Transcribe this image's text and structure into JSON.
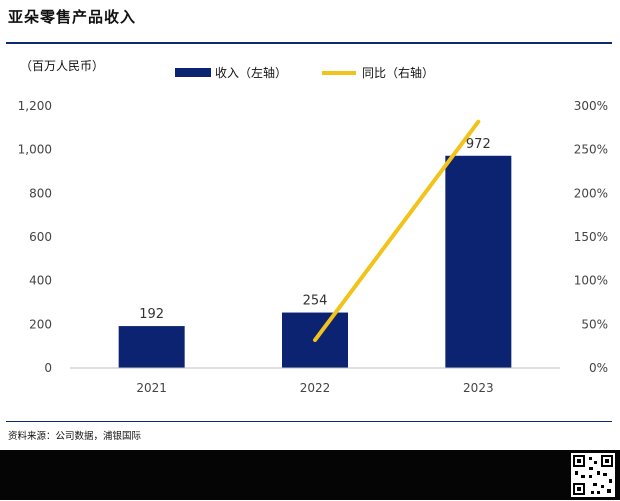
{
  "title": "亚朵零售产品收入",
  "source": "资料来源：公司数据，浦银国际",
  "colors": {
    "bar": "#0c2372",
    "line": "#f2c31a",
    "rule": "#0c2a6e"
  },
  "chart_data": {
    "type": "bar",
    "categories": [
      "2021",
      "2022",
      "2023"
    ],
    "left_unit": "（百万人民币）",
    "left_ticks": [
      "0",
      "200",
      "400",
      "600",
      "800",
      "1,000",
      "1,200"
    ],
    "right_ticks": [
      "0%",
      "50%",
      "100%",
      "150%",
      "200%",
      "250%",
      "300%"
    ],
    "ylim_left": [
      0,
      1200
    ],
    "ylim_right": [
      0,
      300
    ],
    "series": [
      {
        "name": "收入（左轴）",
        "type": "bar",
        "axis": "left",
        "values": [
          192,
          254,
          972
        ],
        "labels": [
          "192",
          "254",
          "972"
        ]
      },
      {
        "name": "同比（右轴）",
        "type": "line",
        "axis": "right",
        "values": [
          null,
          32,
          282
        ]
      }
    ],
    "legend": "top"
  }
}
